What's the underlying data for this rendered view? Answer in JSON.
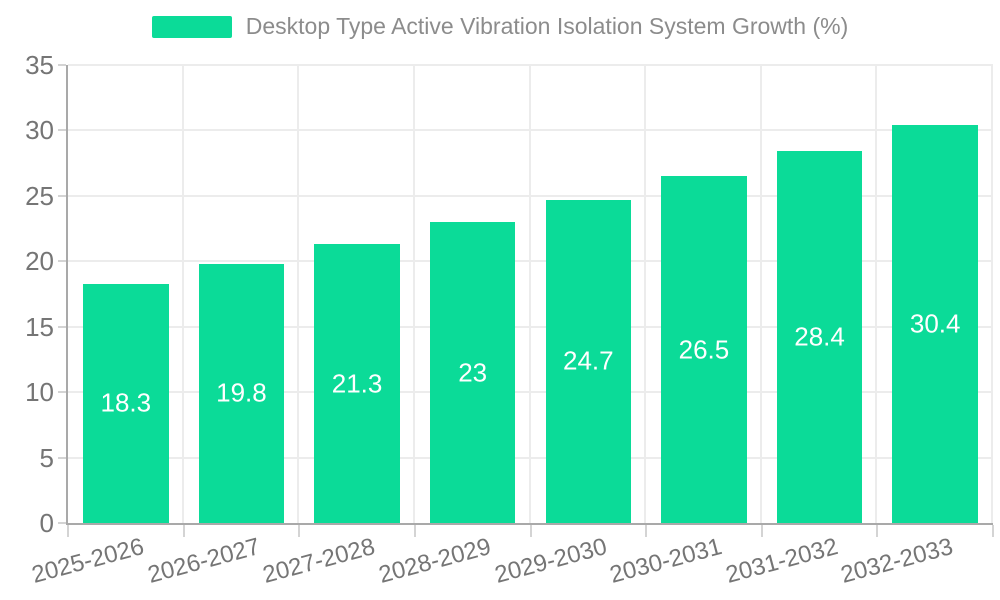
{
  "legend": {
    "label": "Desktop Type Active Vibration Isolation System Growth (%)"
  },
  "chart_data": {
    "type": "bar",
    "title": "",
    "series_name": "Desktop Type Active Vibration Isolation System Growth (%)",
    "categories": [
      "2025-2026",
      "2026-2027",
      "2027-2028",
      "2028-2029",
      "2029-2030",
      "2030-2031",
      "2031-2032",
      "2032-2033"
    ],
    "values": [
      18.3,
      19.8,
      21.3,
      23,
      24.7,
      26.5,
      28.4,
      30.4
    ],
    "value_labels": [
      "18.3",
      "19.8",
      "21.3",
      "23",
      "24.7",
      "26.5",
      "28.4",
      "30.4"
    ],
    "xlabel": "",
    "ylabel": "",
    "ylim": [
      0,
      35
    ],
    "yticks": [
      0,
      5,
      10,
      15,
      20,
      25,
      30,
      35
    ],
    "grid": true,
    "legend_position": "top-center"
  },
  "colors": {
    "bar": "#0bdb98",
    "value_text": "#ffffff",
    "axis_text": "#757575",
    "legend_text": "#8c8c8c",
    "grid_line": "#ececec",
    "axis_line": "#a9a9a9",
    "tick_line": "#d4d4d4",
    "background": "#ffffff"
  }
}
